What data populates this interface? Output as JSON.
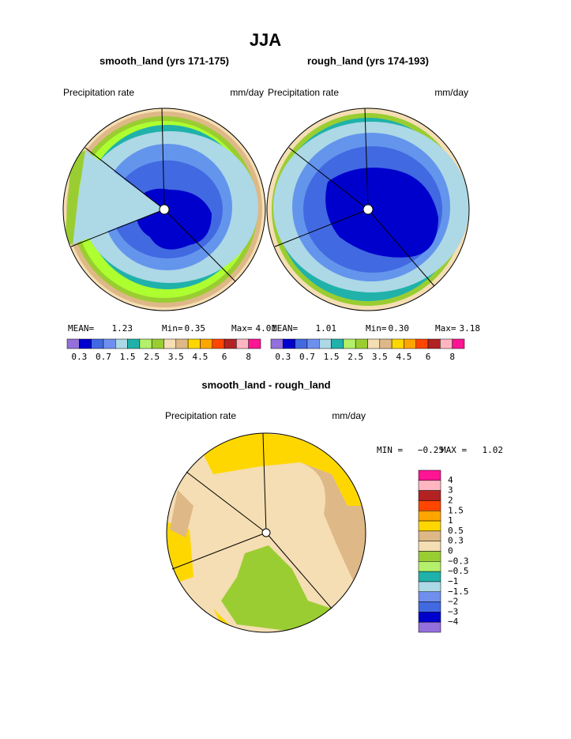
{
  "title": "JJA",
  "panels": [
    {
      "title": "smooth_land (yrs 171-175)",
      "left_label": "Precipitation rate",
      "right_label": "mm/day",
      "stats": [
        "MEAN=",
        "1.23",
        "Min=",
        "0.35",
        "Max=",
        "4.01"
      ]
    },
    {
      "title": "rough_land (yrs 174-193)",
      "left_label": "Precipitation rate",
      "right_label": "mm/day",
      "stats": [
        "MEAN=",
        "1.01",
        "Min=",
        "0.30",
        "Max=",
        "3.18"
      ]
    }
  ],
  "colorbar_labels": [
    "0.3",
    "0.7",
    "1.5",
    "2.5",
    "3.5",
    "4.5",
    "6",
    "8"
  ],
  "difference": {
    "title": "smooth_land - rough_land",
    "left_label": "Precipitation rate",
    "right_label": "mm/day",
    "stats": [
      "MIN =",
      "−0.25",
      "MAX =",
      "1.02"
    ],
    "colorbar_labels": [
      "4",
      "3",
      "2",
      "1.5",
      "1",
      "0.5",
      "0.3",
      "0",
      "−0.3",
      "−0.5",
      "−1",
      "−1.5",
      "−2",
      "−3",
      "−4"
    ]
  }
}
